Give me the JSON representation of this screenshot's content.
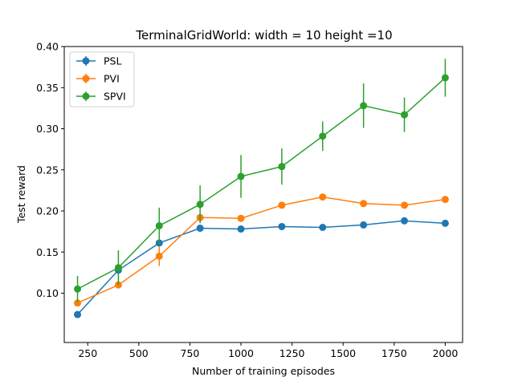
{
  "chart_data": {
    "type": "line",
    "title": "TerminalGridWorld: width = 10 height =10",
    "xlabel": "Number of training episodes",
    "ylabel": "Test reward",
    "xlim": [
      135,
      2085
    ],
    "ylim": [
      0.04,
      0.4
    ],
    "xticks": [
      250,
      500,
      750,
      1000,
      1250,
      1500,
      1750,
      2000
    ],
    "xtick_labels": [
      "250",
      "500",
      "750",
      "1000",
      "1250",
      "1500",
      "1750",
      "2000"
    ],
    "yticks": [
      0.1,
      0.15,
      0.2,
      0.25,
      0.3,
      0.35,
      0.4
    ],
    "ytick_labels": [
      "0.10",
      "0.15",
      "0.20",
      "0.25",
      "0.30",
      "0.35",
      "0.40"
    ],
    "grid": false,
    "legend_position": "top-left",
    "x": [
      200,
      400,
      600,
      800,
      1000,
      1200,
      1400,
      1600,
      1800,
      2000
    ],
    "series": [
      {
        "name": "PSL",
        "color": "#1f77b4",
        "values": [
          0.074,
          0.128,
          0.161,
          0.179,
          0.178,
          0.181,
          0.18,
          0.183,
          0.188,
          0.185
        ],
        "errors": [
          0.002,
          0.002,
          0.003,
          0.002,
          0.002,
          0.002,
          0.002,
          0.002,
          0.002,
          0.002
        ]
      },
      {
        "name": "PVI",
        "color": "#ff7f0e",
        "values": [
          0.088,
          0.11,
          0.145,
          0.192,
          0.191,
          0.207,
          0.217,
          0.209,
          0.207,
          0.214
        ],
        "errors": [
          0.003,
          0.003,
          0.012,
          0.003,
          0.003,
          0.002,
          0.002,
          0.002,
          0.002,
          0.002
        ]
      },
      {
        "name": "SPVI",
        "color": "#2ca02c",
        "values": [
          0.105,
          0.131,
          0.182,
          0.208,
          0.242,
          0.254,
          0.291,
          0.328,
          0.317,
          0.362
        ],
        "errors": [
          0.016,
          0.021,
          0.022,
          0.023,
          0.026,
          0.022,
          0.018,
          0.027,
          0.021,
          0.023
        ]
      }
    ]
  }
}
